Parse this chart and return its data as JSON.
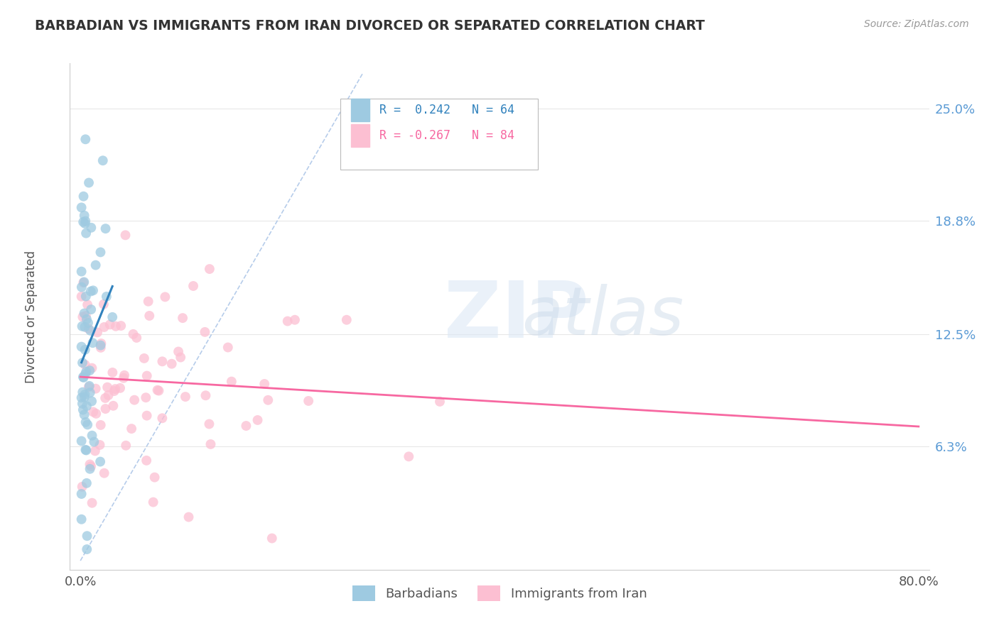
{
  "title": "BARBADIAN VS IMMIGRANTS FROM IRAN DIVORCED OR SEPARATED CORRELATION CHART",
  "source": "Source: ZipAtlas.com",
  "ylabel": "Divorced or Separated",
  "ytick_labels": [
    "25.0%",
    "18.8%",
    "12.5%",
    "6.3%"
  ],
  "ytick_values": [
    0.25,
    0.188,
    0.125,
    0.063
  ],
  "xlim": [
    0.0,
    0.8
  ],
  "ylim": [
    0.0,
    0.27
  ],
  "legend_blue_r": "R =  0.242",
  "legend_blue_n": "N = 64",
  "legend_pink_r": "R = -0.267",
  "legend_pink_n": "N = 84",
  "legend_label_blue": "Barbadians",
  "legend_label_pink": "Immigrants from Iran",
  "blue_color": "#9ecae1",
  "pink_color": "#fcbfd2",
  "blue_line_color": "#3182bd",
  "pink_line_color": "#f768a1",
  "diag_color": "#aec7e8",
  "background_color": "#ffffff",
  "grid_color": "#e8e8e8",
  "title_color": "#333333",
  "source_color": "#999999",
  "ytick_color": "#5b9bd5",
  "xtick_color": "#555555"
}
